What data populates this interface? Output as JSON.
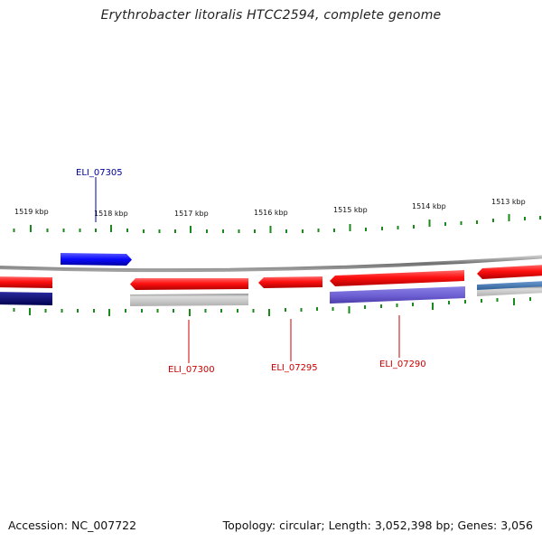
{
  "title": "Erythrobacter litoralis HTCC2594, complete genome",
  "footer": {
    "accession": "Accession: NC_007722",
    "summary": "Topology: circular; Length: 3,052,398 bp; Genes: 3,056"
  },
  "scale_labels": [
    "1519 kbp",
    "1518 kbp",
    "1517 kbp",
    "1516 kbp",
    "1515 kbp",
    "1514 kbp",
    "1513 kbp"
  ],
  "gene_labels": {
    "eli_07305": "ELI_07305",
    "eli_07300": "ELI_07300",
    "eli_07295": "ELI_07295",
    "eli_07290": "ELI_07290"
  },
  "colors": {
    "forward_gene": "#1a1aff",
    "reverse_gene": "#ff1a1a",
    "dark_gene": "#0a0a80",
    "purple_gene": "#6b5fd6",
    "steel_gene": "#4a7ab0",
    "grey_bar": "#bdbdbd",
    "backbone": "#8a8a8a",
    "tick": "#1a7a1a",
    "label_blue": "#000099",
    "label_red": "#cc0000"
  }
}
